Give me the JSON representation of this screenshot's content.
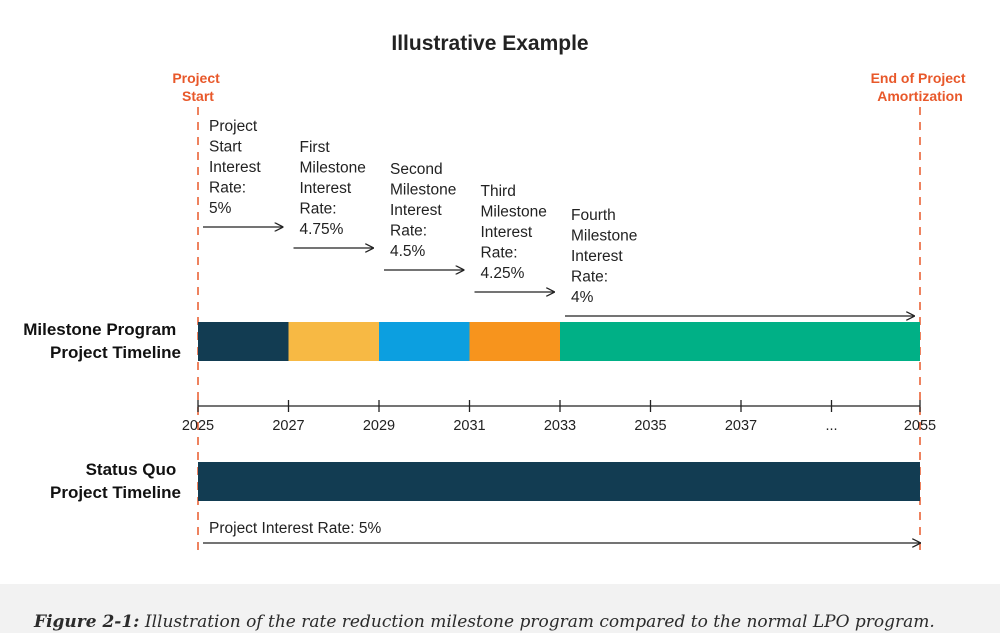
{
  "title": "Illustrative Example",
  "colors": {
    "marker": "#e8582a",
    "navy": "#123c52",
    "yellow": "#f7b944",
    "blue": "#0c9fe0",
    "orange": "#f7941d",
    "green": "#00b086",
    "axis": "#222222"
  },
  "markers": {
    "start": [
      "Project",
      "Start"
    ],
    "end": [
      "End of Project",
      "Amortization"
    ]
  },
  "milestone_program": {
    "label": [
      "Milestone Program",
      "Project Timeline"
    ],
    "rate_steps": [
      {
        "lines": [
          "Project",
          "Start",
          "Interest",
          "Rate:",
          "5%"
        ],
        "start_year": 2025,
        "end_year": 2027,
        "rate": 5
      },
      {
        "lines": [
          "First",
          "Milestone",
          "Interest",
          "Rate:",
          "4.75%"
        ],
        "start_year": 2027,
        "end_year": 2029,
        "rate": 4.75
      },
      {
        "lines": [
          "Second",
          "Milestone",
          "Interest",
          "Rate:",
          "4.5%"
        ],
        "start_year": 2029,
        "end_year": 2031,
        "rate": 4.5
      },
      {
        "lines": [
          "Third",
          "Milestone",
          "Interest",
          "Rate:",
          "4.25%"
        ],
        "start_year": 2031,
        "end_year": 2033,
        "rate": 4.25
      },
      {
        "lines": [
          "Fourth",
          "Milestone",
          "Interest",
          "Rate:",
          "4%"
        ],
        "start_year": 2033,
        "end_year": 2055,
        "rate": 4
      }
    ],
    "segments": [
      {
        "start_year": 2025,
        "end_year": 2027,
        "color": "#123c52"
      },
      {
        "start_year": 2027,
        "end_year": 2029,
        "color": "#f7b944"
      },
      {
        "start_year": 2029,
        "end_year": 2031,
        "color": "#0c9fe0"
      },
      {
        "start_year": 2031,
        "end_year": 2033,
        "color": "#f7941d"
      },
      {
        "start_year": 2033,
        "end_year": 2055,
        "color": "#00b086"
      }
    ]
  },
  "axis": {
    "ticks": [
      "2025",
      "2027",
      "2029",
      "2031",
      "2033",
      "2035",
      "2037",
      "...",
      "2055"
    ]
  },
  "status_quo": {
    "label": [
      "Status Quo",
      "Project Timeline"
    ],
    "start_year": 2025,
    "end_year": 2055,
    "color": "#123c52",
    "rate_label": "Project Interest Rate: 5%"
  },
  "caption": {
    "label": "Figure 2-1:",
    "text": " Illustration of the rate reduction milestone program compared to the normal LPO program."
  }
}
